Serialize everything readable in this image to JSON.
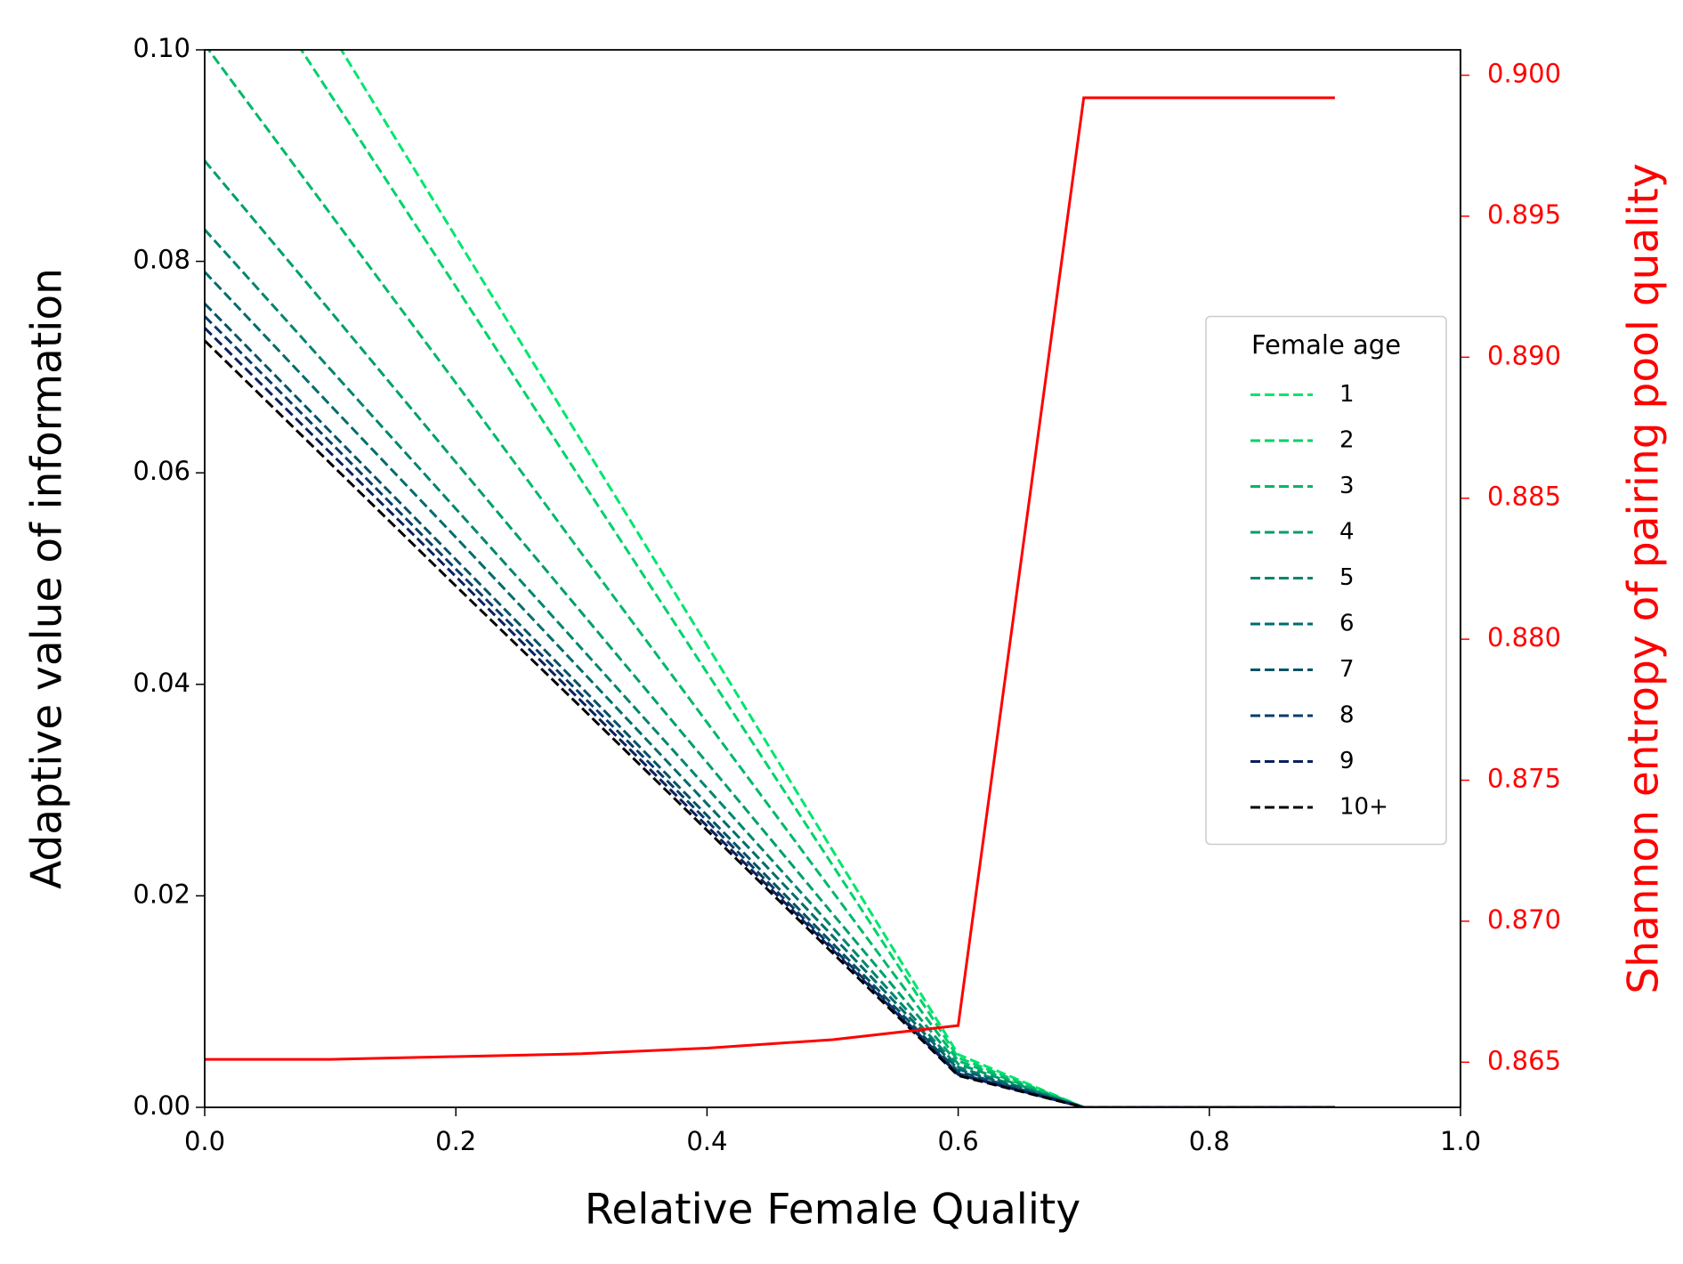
{
  "chart_data": {
    "type": "line",
    "xlabel": "Relative Female Quality",
    "ylabel": "Adaptive value of information",
    "y2label": "Shannon entropy of pairing pool quality",
    "x": [
      0,
      0.1,
      0.2,
      0.3,
      0.4,
      0.5,
      0.6,
      0.7,
      0.8,
      0.9
    ],
    "xlim": [
      0,
      1
    ],
    "xticks": [
      {
        "value": 0,
        "label": "0.0"
      },
      0.2,
      0.4,
      0.6,
      0.8,
      {
        "value": 1,
        "label": "1.0"
      }
    ],
    "ylim": [
      0,
      0.1
    ],
    "yticks": [
      {
        "value": 0,
        "label": "0.00"
      },
      {
        "value": 0.02,
        "label": "0.02"
      },
      {
        "value": 0.04,
        "label": "0.04"
      },
      {
        "value": 0.06,
        "label": "0.06"
      },
      {
        "value": 0.08,
        "label": "0.08"
      },
      {
        "value": 0.1,
        "label": "0.10"
      }
    ],
    "y2lim": [
      0.8634,
      0.9009
    ],
    "y2ticks": [
      0.865,
      {
        "value": 0.87,
        "label": "0.870"
      },
      0.875,
      {
        "value": 0.88,
        "label": "0.880"
      },
      0.885,
      {
        "value": 0.89,
        "label": "0.890"
      },
      0.895,
      {
        "value": 0.9,
        "label": "0.900"
      }
    ],
    "y2color": "#ff0000",
    "legend_title": "Female age",
    "legend_loc": "center right",
    "series": [
      {
        "name": "1",
        "color": "#00e66e",
        "dash": true,
        "values": [
          0.121,
          0.1017,
          0.0823,
          0.063,
          0.0437,
          0.0243,
          0.005,
          0,
          0,
          0
        ]
      },
      {
        "name": "2",
        "color": "#00d26a",
        "dash": true,
        "values": [
          0.114,
          0.0958,
          0.0776,
          0.0593,
          0.0411,
          0.0229,
          0.0047,
          0,
          0,
          0
        ]
      },
      {
        "name": "3",
        "color": "#00b86a",
        "dash": true,
        "values": [
          0.1005,
          0.0845,
          0.0685,
          0.0524,
          0.0364,
          0.0204,
          0.0044,
          0,
          0,
          0
        ]
      },
      {
        "name": "4",
        "color": "#009e6c",
        "dash": true,
        "values": [
          0.0895,
          0.0753,
          0.061,
          0.0468,
          0.0326,
          0.0183,
          0.0041,
          0,
          0,
          0
        ]
      },
      {
        "name": "5",
        "color": "#00856e",
        "dash": true,
        "values": [
          0.083,
          0.0698,
          0.0566,
          0.0434,
          0.0302,
          0.017,
          0.0038,
          0,
          0,
          0
        ]
      },
      {
        "name": "6",
        "color": "#006c6c",
        "dash": true,
        "values": [
          0.079,
          0.0664,
          0.0539,
          0.0413,
          0.0287,
          0.0162,
          0.0036,
          0,
          0,
          0
        ]
      },
      {
        "name": "7",
        "color": "#065468",
        "dash": true,
        "values": [
          0.076,
          0.0639,
          0.0518,
          0.0397,
          0.0276,
          0.0155,
          0.0034,
          0,
          0,
          0
        ]
      },
      {
        "name": "8",
        "color": "#0a3c6a",
        "dash": true,
        "values": [
          0.0748,
          0.0629,
          0.0509,
          0.039,
          0.0271,
          0.0151,
          0.0032,
          0,
          0,
          0
        ]
      },
      {
        "name": "9",
        "color": "#0a2060",
        "dash": true,
        "values": [
          0.0737,
          0.0619,
          0.0502,
          0.0384,
          0.0266,
          0.0149,
          0.0031,
          0,
          0,
          0
        ]
      },
      {
        "name": "10+",
        "color": "#000000",
        "dash": true,
        "values": [
          0.0725,
          0.0609,
          0.0493,
          0.0378,
          0.0262,
          0.0146,
          0.003,
          0,
          0,
          0
        ]
      },
      {
        "color": "#ff0000",
        "axis": "y2",
        "values": [
          0.8651,
          0.8651,
          0.8652,
          0.8653,
          0.8655,
          0.8658,
          0.8663,
          0.8992,
          0.8992,
          0.8992
        ]
      }
    ]
  }
}
